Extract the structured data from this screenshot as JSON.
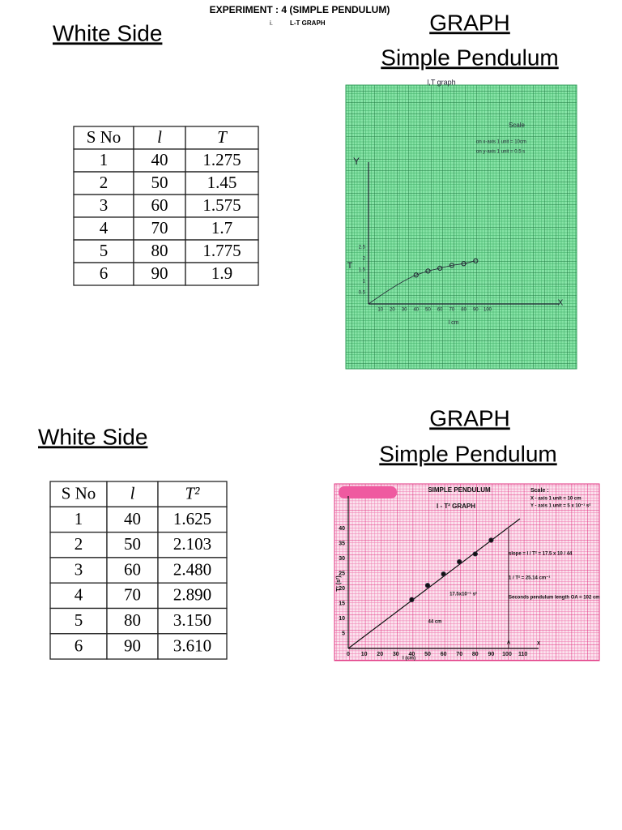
{
  "header": {
    "title": "EXPERIMENT : 4 (SIMPLE PENDULUM)",
    "item_number": "i.",
    "item_title": "L-T GRAPH"
  },
  "sections": [
    {
      "side_label": "White Side",
      "graph_title": "GRAPH",
      "graph_subtitle": "Simple Pendulum",
      "table": {
        "columns": [
          "S No",
          "l",
          "T"
        ],
        "rows": [
          [
            "1",
            "40",
            "1.275"
          ],
          [
            "2",
            "50",
            "1.45"
          ],
          [
            "3",
            "60",
            "1.575"
          ],
          [
            "4",
            "70",
            "1.7"
          ],
          [
            "5",
            "80",
            "1.775"
          ],
          [
            "6",
            "90",
            "1.9"
          ]
        ]
      },
      "graph": {
        "labels": [
          "l,T graph",
          "Scale",
          "on x-axis 1 unit = 10cm",
          "on y-axis 1 unit = 0.5 s",
          "Y",
          "X",
          "T",
          "l cm"
        ],
        "xticks": [
          10,
          20,
          30,
          40,
          50,
          60,
          70,
          80,
          90,
          100
        ],
        "yticks": [
          0.5,
          1,
          1.5,
          2,
          2.5
        ]
      }
    },
    {
      "side_label": "White Side",
      "graph_title": "GRAPH",
      "graph_subtitle": "Simple Pendulum",
      "table": {
        "columns": [
          "S No",
          "l",
          "T²"
        ],
        "rows": [
          [
            "1",
            "40",
            "1.625"
          ],
          [
            "2",
            "50",
            "2.103"
          ],
          [
            "3",
            "60",
            "2.480"
          ],
          [
            "4",
            "70",
            "2.890"
          ],
          [
            "5",
            "80",
            "3.150"
          ],
          [
            "6",
            "90",
            "3.610"
          ]
        ]
      },
      "graph": {
        "labels": [
          "SIMPLE PENDULUM",
          "l - T² GRAPH",
          "Scale :",
          "X - axis 1 unit = 10 cm",
          "Y - axis 1 unit = 5 x 10⁻¹ s²",
          "slope = l / T² = 17.5 x 10 / 44",
          "1 / T² = 25.14 cm⁻¹",
          "17.5x10⁻¹ s²",
          "Seconds pendulum length OA = 102 cm",
          "44 cm",
          "T² (s²)",
          "l (cm)",
          "A",
          "X"
        ],
        "xticks": [
          0,
          10,
          20,
          30,
          40,
          50,
          60,
          70,
          80,
          90,
          100,
          110
        ],
        "yticks": [
          5,
          10,
          15,
          20,
          25,
          30,
          35,
          40
        ]
      }
    }
  ]
}
